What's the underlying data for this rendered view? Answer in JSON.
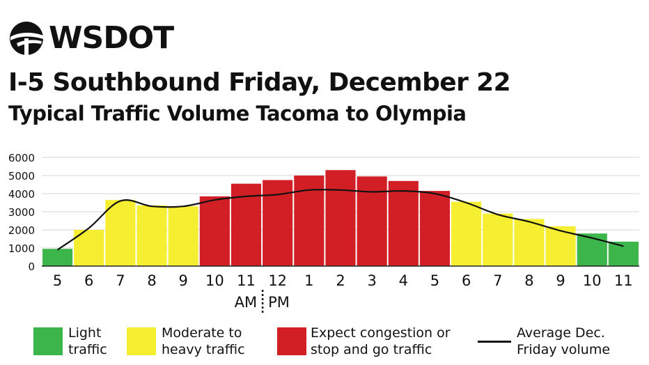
{
  "brand": {
    "name": "WSDOT",
    "logo_icon": "wsdot-swoosh-globe-icon"
  },
  "title": "I-5 Southbound Friday, December 22",
  "subtitle": "Typical Traffic Volume Tacoma to Olympia",
  "colors": {
    "light": "#3cb54a",
    "moderate": "#f5ee31",
    "congestion": "#d21f26",
    "average_line": "#111111",
    "grid": "#d6d6d6"
  },
  "chart_data": {
    "type": "bar",
    "title": "I-5 Southbound Friday, December 22",
    "subtitle": "Typical Traffic Volume Tacoma to Olympia",
    "xlabel": "",
    "ylabel": "",
    "ylim": [
      0,
      6000
    ],
    "yticks": [
      0,
      1000,
      2000,
      3000,
      4000,
      5000,
      6000
    ],
    "grid": true,
    "categories": [
      "5",
      "6",
      "7",
      "8",
      "9",
      "10",
      "11",
      "12",
      "1",
      "2",
      "3",
      "4",
      "5",
      "6",
      "7",
      "8",
      "9",
      "10",
      "11"
    ],
    "am_label": "AM",
    "pm_label": "PM",
    "series": [
      {
        "values": [
          950,
          2000,
          3650,
          3350,
          3300,
          3850,
          4550,
          4750,
          5000,
          5300,
          4950,
          4700,
          4150,
          3550,
          2900,
          2600,
          2200,
          1800,
          1350
        ],
        "levels": [
          "light",
          "moderate",
          "moderate",
          "moderate",
          "moderate",
          "congestion",
          "congestion",
          "congestion",
          "congestion",
          "congestion",
          "congestion",
          "congestion",
          "congestion",
          "moderate",
          "moderate",
          "moderate",
          "moderate",
          "light",
          "light"
        ]
      },
      {
        "type": "line",
        "values": [
          900,
          2100,
          3600,
          3300,
          3300,
          3650,
          3850,
          3950,
          4200,
          4200,
          4100,
          4150,
          4000,
          3500,
          2850,
          2450,
          1950,
          1550,
          1100
        ]
      }
    ],
    "legend": {
      "placement": "bottom",
      "items": [
        {
          "key": "light",
          "line1": "Light",
          "line2": "traffic"
        },
        {
          "key": "moderate",
          "line1": "Moderate to",
          "line2": "heavy traffic"
        },
        {
          "key": "congestion",
          "line1": "Expect congestion or",
          "line2": "stop and go traffic"
        },
        {
          "key": "average_line",
          "line1": "Average Dec.",
          "line2": "Friday volume"
        }
      ]
    }
  }
}
